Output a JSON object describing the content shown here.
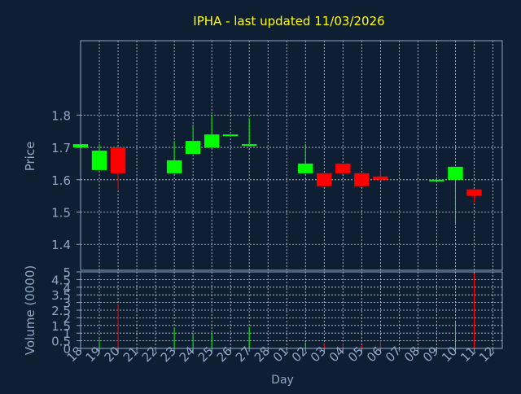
{
  "colors": {
    "background": "#0f1f33",
    "frame": "#8fa6c6",
    "grid": "#c8d2e0",
    "title": "#ffff00",
    "label": "#8fa6c6",
    "up": "#00ff00",
    "down": "#ff0000"
  },
  "chart_data": [
    {
      "type": "candlestick",
      "title": "IPHA - last updated 11/03/2026",
      "xlabel": "Day",
      "ylabel": "Price",
      "grid": true,
      "ylim": [
        1.32,
        2.03
      ],
      "yticks": [
        "1.4",
        "1.5",
        "1.6",
        "1.7",
        "1.8"
      ],
      "x_ticks": [
        "18",
        "19",
        "20",
        "21",
        "22",
        "23",
        "24",
        "25",
        "26",
        "27",
        "28",
        "01",
        "02",
        "03",
        "04",
        "05",
        "06",
        "07",
        "08",
        "09",
        "10",
        "11",
        "12"
      ],
      "candles": [
        {
          "x": "18",
          "open": 1.7,
          "high": 1.71,
          "low": 1.7,
          "close": 1.71
        },
        {
          "x": "19",
          "open": 1.63,
          "high": 1.71,
          "low": 1.63,
          "close": 1.69
        },
        {
          "x": "20",
          "open": 1.7,
          "high": 1.7,
          "low": 1.57,
          "close": 1.62
        },
        {
          "x": "23",
          "open": 1.62,
          "high": 1.72,
          "low": 1.62,
          "close": 1.66
        },
        {
          "x": "24",
          "open": 1.68,
          "high": 1.77,
          "low": 1.68,
          "close": 1.72
        },
        {
          "x": "25",
          "open": 1.7,
          "high": 1.8,
          "low": 1.7,
          "close": 1.74
        },
        {
          "x": "26",
          "open": 1.74,
          "high": 1.74,
          "low": 1.74,
          "close": 1.74
        },
        {
          "x": "27",
          "open": 1.71,
          "high": 1.79,
          "low": 1.71,
          "close": 1.71
        },
        {
          "x": "02",
          "open": 1.62,
          "high": 1.71,
          "low": 1.62,
          "close": 1.65
        },
        {
          "x": "03",
          "open": 1.62,
          "high": 1.62,
          "low": 1.58,
          "close": 1.58
        },
        {
          "x": "04",
          "open": 1.65,
          "high": 1.65,
          "low": 1.62,
          "close": 1.62
        },
        {
          "x": "05",
          "open": 1.62,
          "high": 1.62,
          "low": 1.58,
          "close": 1.58
        },
        {
          "x": "06",
          "open": 1.61,
          "high": 1.63,
          "low": 1.6,
          "close": 1.6
        },
        {
          "x": "09",
          "open": 1.6,
          "high": 1.6,
          "low": 1.6,
          "close": 1.6
        },
        {
          "x": "10",
          "open": 1.6,
          "high": 1.64,
          "low": 1.46,
          "close": 1.64
        },
        {
          "x": "11",
          "open": 1.57,
          "high": 1.57,
          "low": 1.53,
          "close": 1.55
        }
      ]
    },
    {
      "type": "bar",
      "xlabel": "Day",
      "ylabel": "Volume (0000)",
      "grid": true,
      "ylim": [
        0,
        5
      ],
      "yticks": [
        "0",
        "0.5",
        "1",
        "1.5",
        "2",
        "2.5",
        "3",
        "3.5",
        "4",
        "4.5",
        "5"
      ],
      "x_ticks": [
        "18",
        "19",
        "20",
        "21",
        "22",
        "23",
        "24",
        "25",
        "26",
        "27",
        "28",
        "01",
        "02",
        "03",
        "04",
        "05",
        "06",
        "07",
        "08",
        "09",
        "10",
        "11",
        "12"
      ],
      "volumes": [
        {
          "x": "19",
          "value": 0.6,
          "dir": "up"
        },
        {
          "x": "20",
          "value": 2.9,
          "dir": "down"
        },
        {
          "x": "23",
          "value": 1.3,
          "dir": "up"
        },
        {
          "x": "24",
          "value": 1.0,
          "dir": "up"
        },
        {
          "x": "25",
          "value": 1.0,
          "dir": "up"
        },
        {
          "x": "27",
          "value": 1.4,
          "dir": "up"
        },
        {
          "x": "02",
          "value": 0.4,
          "dir": "up"
        },
        {
          "x": "03",
          "value": 0.3,
          "dir": "down"
        },
        {
          "x": "04",
          "value": 0.3,
          "dir": "down"
        },
        {
          "x": "05",
          "value": 0.2,
          "dir": "down"
        },
        {
          "x": "06",
          "value": 0.5,
          "dir": "down"
        },
        {
          "x": "10",
          "value": 1.7,
          "dir": "up"
        },
        {
          "x": "11",
          "value": 4.9,
          "dir": "down"
        }
      ]
    }
  ]
}
